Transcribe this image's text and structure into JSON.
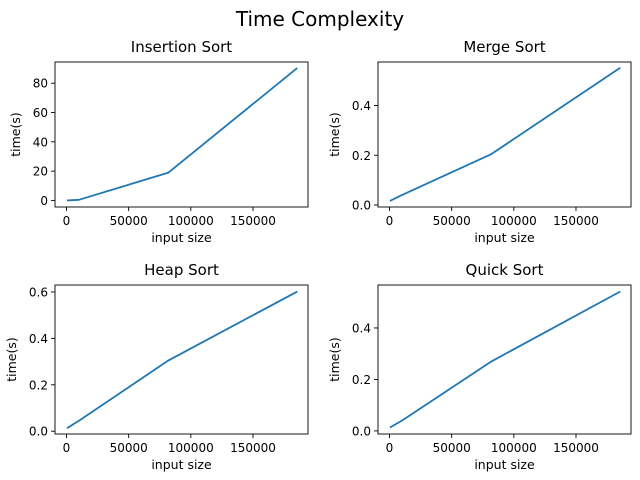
{
  "figure": {
    "title": "Time Complexity",
    "line_color": "#1f77b4",
    "axis_color": "#000000",
    "background": "#ffffff"
  },
  "chart_data": [
    {
      "type": "line",
      "title": "Insertion Sort",
      "xlabel": "input size",
      "ylabel": "time(s)",
      "xlim": [
        -9250,
        194250
      ],
      "ylim": [
        -4.5,
        94.5
      ],
      "xticks": [
        0,
        50000,
        100000,
        150000
      ],
      "xtick_labels": [
        "0",
        "50000",
        "100000",
        "150000"
      ],
      "yticks": [
        0,
        20,
        40,
        60,
        80
      ],
      "ytick_labels": [
        "0",
        "20",
        "40",
        "60",
        "80"
      ],
      "grid": false,
      "series": [
        {
          "x": [
            1000,
            10000,
            82000,
            185000
          ],
          "y": [
            0.0,
            0.4,
            19.0,
            90.0
          ]
        }
      ]
    },
    {
      "type": "line",
      "title": "Merge Sort",
      "xlabel": "input size",
      "ylabel": "time(s)",
      "xlim": [
        -9250,
        194250
      ],
      "ylim": [
        -0.008,
        0.575
      ],
      "xticks": [
        0,
        50000,
        100000,
        150000
      ],
      "xtick_labels": [
        "0",
        "50000",
        "100000",
        "150000"
      ],
      "yticks": [
        0.0,
        0.2,
        0.4
      ],
      "ytick_labels": [
        "0.0",
        "0.2",
        "0.4"
      ],
      "grid": false,
      "series": [
        {
          "x": [
            1000,
            10000,
            82000,
            185000
          ],
          "y": [
            0.018,
            0.04,
            0.205,
            0.55
          ]
        }
      ]
    },
    {
      "type": "line",
      "title": "Heap Sort",
      "xlabel": "input size",
      "ylabel": "time(s)",
      "xlim": [
        -9250,
        194250
      ],
      "ylim": [
        -0.012,
        0.63
      ],
      "xticks": [
        0,
        50000,
        100000,
        150000
      ],
      "xtick_labels": [
        "0",
        "50000",
        "100000",
        "150000"
      ],
      "yticks": [
        0.0,
        0.2,
        0.4,
        0.6
      ],
      "ytick_labels": [
        "0.0",
        "0.2",
        "0.4",
        "0.6"
      ],
      "grid": false,
      "series": [
        {
          "x": [
            1000,
            10000,
            82000,
            185000
          ],
          "y": [
            0.015,
            0.045,
            0.305,
            0.6
          ]
        }
      ]
    },
    {
      "type": "line",
      "title": "Quick Sort",
      "xlabel": "input size",
      "ylabel": "time(s)",
      "xlim": [
        -9250,
        194250
      ],
      "ylim": [
        -0.012,
        0.567
      ],
      "xticks": [
        0,
        50000,
        100000,
        150000
      ],
      "xtick_labels": [
        "0",
        "50000",
        "100000",
        "150000"
      ],
      "yticks": [
        0.0,
        0.2,
        0.4
      ],
      "ytick_labels": [
        "0.0",
        "0.2",
        "0.4"
      ],
      "grid": false,
      "series": [
        {
          "x": [
            1000,
            10000,
            82000,
            185000
          ],
          "y": [
            0.015,
            0.04,
            0.27,
            0.54
          ]
        }
      ]
    }
  ]
}
